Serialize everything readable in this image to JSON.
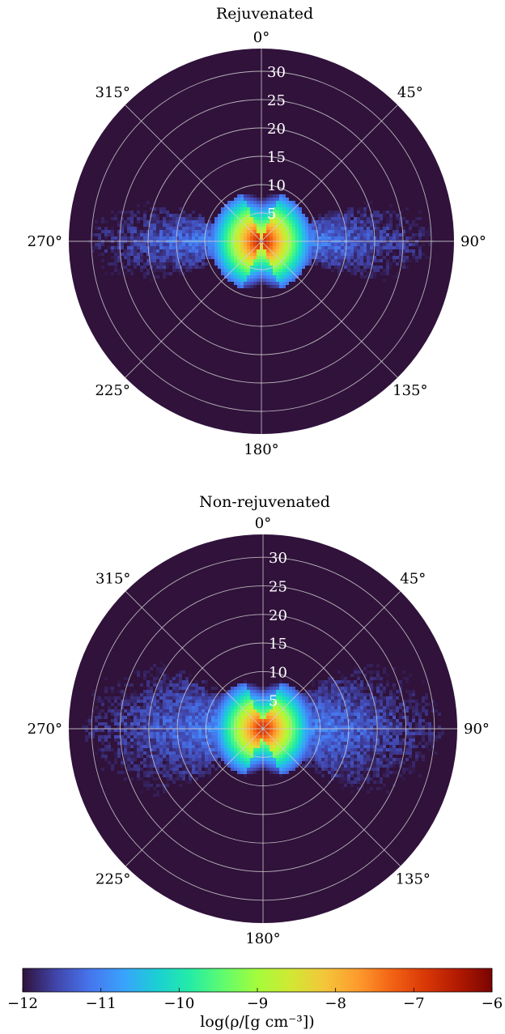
{
  "chart_data": [
    {
      "type": "heatmap",
      "subtype": "polar",
      "title": "Rejuvenated",
      "angle_ticks": [
        "0°",
        "45°",
        "90°",
        "135°",
        "180°",
        "225°",
        "270°",
        "315°"
      ],
      "radial_ticks": [
        "5",
        "10",
        "15",
        "20",
        "25",
        "30"
      ],
      "radial_values": [
        5,
        10,
        15,
        20,
        25,
        30
      ],
      "rlim": [
        0,
        34
      ],
      "background_value": -12,
      "structure": {
        "description_values": "log density map, peak near center, two lobes along 90/270 deg axis",
        "core_peak": -6.3,
        "lobe_extent": 32,
        "lobe_half_opening_deg": 22
      }
    },
    {
      "type": "heatmap",
      "subtype": "polar",
      "title": "Non-rejuvenated",
      "angle_ticks": [
        "0°",
        "45°",
        "90°",
        "135°",
        "180°",
        "225°",
        "270°",
        "315°"
      ],
      "radial_ticks": [
        "5",
        "10",
        "15",
        "20",
        "25",
        "30"
      ],
      "radial_values": [
        5,
        10,
        15,
        20,
        25,
        30
      ],
      "rlim": [
        0,
        34
      ],
      "background_value": -12,
      "structure": {
        "description_values": "log density map, peak near center, two broad lobes along 90/270 deg axis",
        "core_peak": -6.5,
        "lobe_extent": 34,
        "lobe_half_opening_deg": 38
      }
    }
  ],
  "colorbar": {
    "label": "log(ρ/[g cm⁻³])",
    "ticks": [
      "−12",
      "−11",
      "−10",
      "−9",
      "−8",
      "−7",
      "−6"
    ],
    "tick_values": [
      -12,
      -11,
      -10,
      -9,
      -8,
      -7,
      -6
    ],
    "range": [
      -12,
      -6
    ],
    "colormap_stops": [
      "#30123b",
      "#4145ab",
      "#4675ed",
      "#39a2fc",
      "#1bcfd4",
      "#24eca6",
      "#61fc6c",
      "#a4fc3b",
      "#d1e834",
      "#f3c63a",
      "#fe9b2d",
      "#f36315",
      "#d93806",
      "#b11901",
      "#7a0402"
    ]
  }
}
